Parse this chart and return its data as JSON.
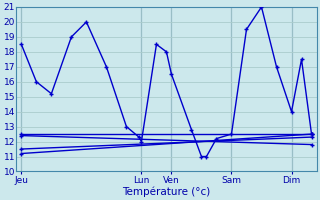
{
  "xlabel": "Température (°c)",
  "ylim": [
    10,
    21
  ],
  "background_color": "#cce8ec",
  "grid_color": "#aacccc",
  "line_color": "#0000cc",
  "day_labels": [
    "Jeu",
    "Lun",
    "Ven",
    "Sam",
    "Dim"
  ],
  "day_x": [
    0,
    48,
    60,
    84,
    108
  ],
  "xlim": [
    -2,
    118
  ],
  "main_x": [
    0,
    6,
    12,
    20,
    26,
    34,
    42,
    47,
    48,
    54,
    58,
    60,
    68,
    72,
    74,
    78,
    84,
    90,
    96,
    102,
    108,
    112,
    116
  ],
  "main_y": [
    18.5,
    16.0,
    15.2,
    19.0,
    20.0,
    17.0,
    13.0,
    12.3,
    12.0,
    18.5,
    18.0,
    16.5,
    12.8,
    11.0,
    11.0,
    12.2,
    12.5,
    19.5,
    21.0,
    17.0,
    14.0,
    17.5,
    12.5
  ],
  "flat_lines": [
    {
      "x": [
        0,
        116
      ],
      "y": [
        12.5,
        12.5
      ]
    },
    {
      "x": [
        0,
        116
      ],
      "y": [
        12.4,
        11.8
      ]
    },
    {
      "x": [
        0,
        116
      ],
      "y": [
        11.2,
        12.5
      ]
    },
    {
      "x": [
        0,
        116
      ],
      "y": [
        11.5,
        12.3
      ]
    }
  ]
}
